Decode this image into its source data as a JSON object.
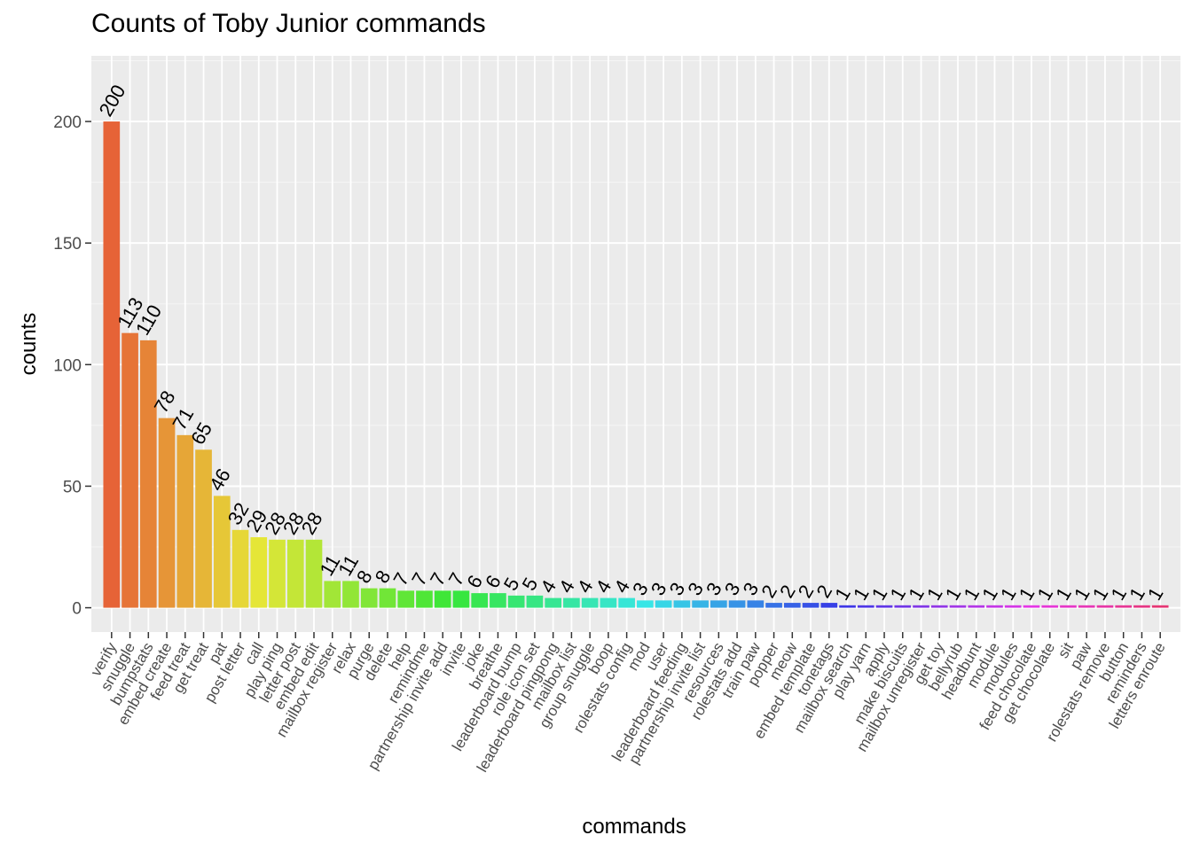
{
  "chart_data": {
    "type": "bar",
    "title": "Counts of Toby Junior commands",
    "xlabel": "commands",
    "ylabel": "counts",
    "ylim": [
      -10,
      227
    ],
    "yticks": [
      0,
      50,
      100,
      150,
      200
    ],
    "grid": true,
    "legend": "none",
    "categories": [
      "verify",
      "snuggle",
      "bumpstats",
      "embed create",
      "feed treat",
      "get treat",
      "pat",
      "post letter",
      "call",
      "play ping",
      "letter post",
      "embed edit",
      "mailbox register",
      "relax",
      "purge",
      "delete",
      "help",
      "remindme",
      "partnership invite add",
      "invite",
      "joke",
      "breathe",
      "leaderboard bump",
      "role icon set",
      "leaderboard pingpong",
      "mailbox list",
      "group snuggle",
      "boop",
      "rolestats config",
      "mod",
      "user",
      "leaderboard feeding",
      "partnership invite list",
      "resources",
      "rolestats add",
      "train paw",
      "popper",
      "meow",
      "embed template",
      "tonetags",
      "mailbox search",
      "play yarn",
      "apply",
      "make biscuits",
      "mailbox unregister",
      "get toy",
      "bellyrub",
      "headbunt",
      "module",
      "modules",
      "feed chocolate",
      "get chocolate",
      "sit",
      "paw",
      "rolestats remove",
      "button",
      "reminders",
      "letters enroute"
    ],
    "values": [
      200,
      113,
      110,
      78,
      71,
      65,
      46,
      32,
      29,
      28,
      28,
      28,
      11,
      11,
      8,
      8,
      7,
      7,
      7,
      7,
      6,
      6,
      5,
      5,
      4,
      4,
      4,
      4,
      4,
      3,
      3,
      3,
      3,
      3,
      3,
      3,
      2,
      2,
      2,
      2,
      1,
      1,
      1,
      1,
      1,
      1,
      1,
      1,
      1,
      1,
      1,
      1,
      1,
      1,
      1,
      1,
      1,
      1
    ]
  }
}
